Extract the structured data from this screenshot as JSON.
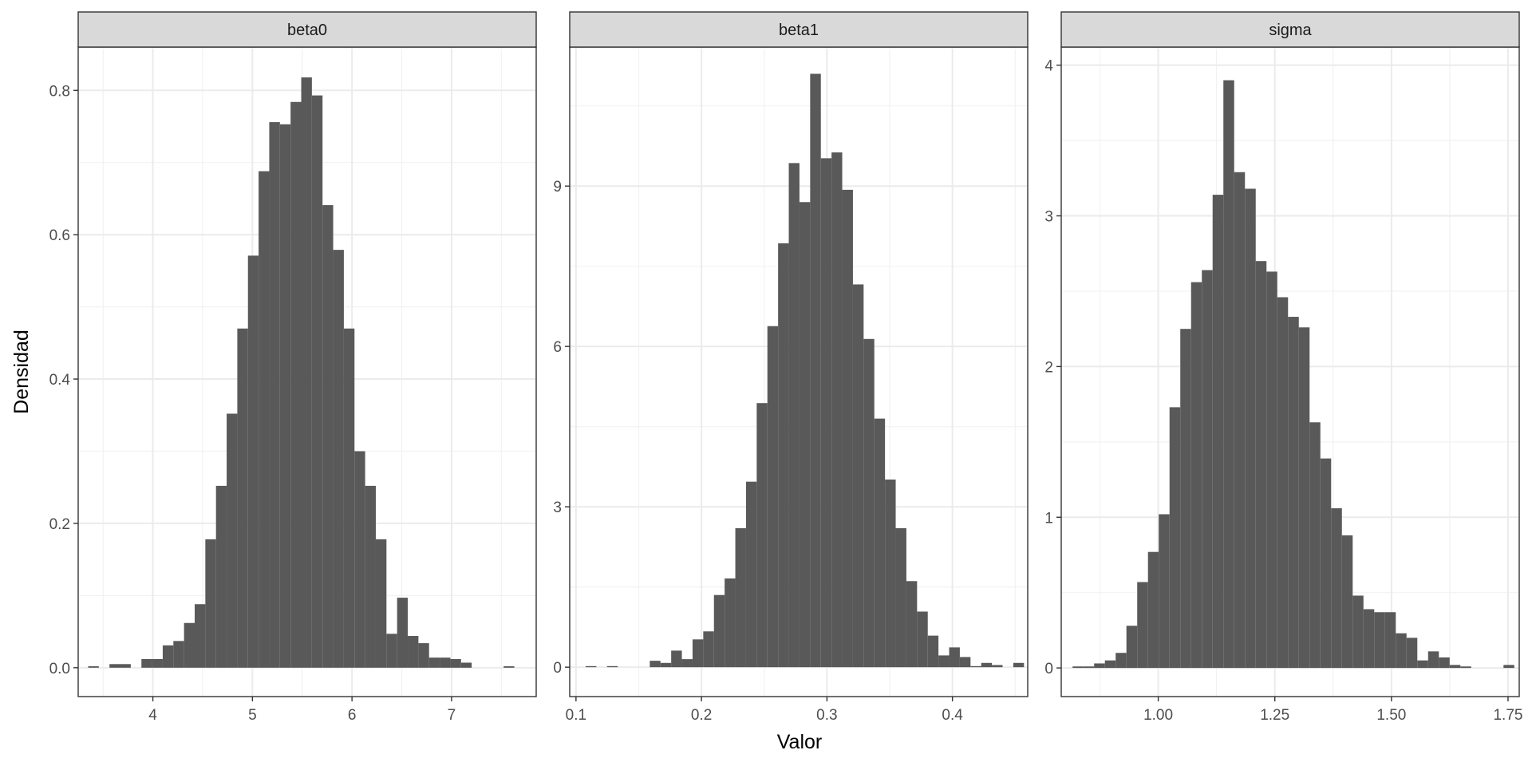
{
  "chart_data": {
    "type": "bar",
    "xlabel": "Valor",
    "ylabel": "Densidad",
    "grid": true,
    "panels": [
      {
        "name": "beta0",
        "xlim": [
          3.25,
          7.85
        ],
        "ylim": [
          -0.04,
          0.86
        ],
        "xticks": [
          4,
          5,
          6,
          7
        ],
        "yticks": [
          0.0,
          0.2,
          0.4,
          0.6,
          0.8
        ],
        "ytick_labels": [
          "0.0",
          "0.2",
          "0.4",
          "0.6",
          "0.8"
        ],
        "bin_start": 3.35,
        "bin_width": 0.107,
        "values": [
          0.002,
          0,
          0.005,
          0.005,
          0,
          0.012,
          0.012,
          0.031,
          0.037,
          0.062,
          0.088,
          0.178,
          0.252,
          0.352,
          0.47,
          0.571,
          0.688,
          0.756,
          0.753,
          0.784,
          0.818,
          0.793,
          0.641,
          0.579,
          0.47,
          0.3,
          0.252,
          0.178,
          0.047,
          0.097,
          0.044,
          0.034,
          0.014,
          0.014,
          0.012,
          0.007,
          0,
          0,
          0,
          0.002
        ]
      },
      {
        "name": "beta1",
        "xlim": [
          0.095,
          0.46
        ],
        "ylim": [
          -0.55,
          11.6
        ],
        "xticks": [
          0.1,
          0.2,
          0.3,
          0.4
        ],
        "yticks": [
          0,
          3,
          6,
          9
        ],
        "ytick_labels": [
          "0",
          "3",
          "6",
          "9"
        ],
        "bin_start": 0.1077,
        "bin_width": 0.00852,
        "values": [
          0.02,
          0,
          0.02,
          0,
          0,
          0,
          0.12,
          0.08,
          0.31,
          0.15,
          0.52,
          0.67,
          1.35,
          1.66,
          2.6,
          3.47,
          4.94,
          6.38,
          7.93,
          9.43,
          8.7,
          11.1,
          9.52,
          9.63,
          8.93,
          7.16,
          6.14,
          4.65,
          3.51,
          2.6,
          1.61,
          1.04,
          0.59,
          0.22,
          0.37,
          0.19,
          0.02,
          0.08,
          0.04,
          0,
          0.08
        ]
      },
      {
        "name": "sigma",
        "xlim": [
          0.792,
          1.774
        ],
        "ylim": [
          -0.19,
          4.12
        ],
        "xticks": [
          1.0,
          1.25,
          1.5,
          1.75
        ],
        "yticks": [
          0,
          1,
          2,
          3,
          4
        ],
        "ytick_labels": [
          "0",
          "1",
          "2",
          "3",
          "4"
        ],
        "xtick_labels": [
          "1.00",
          "1.25",
          "1.50",
          "1.75"
        ],
        "bin_start": 0.8163,
        "bin_width": 0.0231,
        "values": [
          0.01,
          0.01,
          0.03,
          0.05,
          0.1,
          0.28,
          0.57,
          0.77,
          1.02,
          1.73,
          2.25,
          2.56,
          2.64,
          3.14,
          3.9,
          3.29,
          3.18,
          2.7,
          2.63,
          2.46,
          2.33,
          2.26,
          1.63,
          1.39,
          1.06,
          0.88,
          0.48,
          0.39,
          0.37,
          0.37,
          0.23,
          0.2,
          0.05,
          0.11,
          0.07,
          0.02,
          0.01,
          0,
          0,
          0,
          0.02
        ]
      }
    ]
  }
}
